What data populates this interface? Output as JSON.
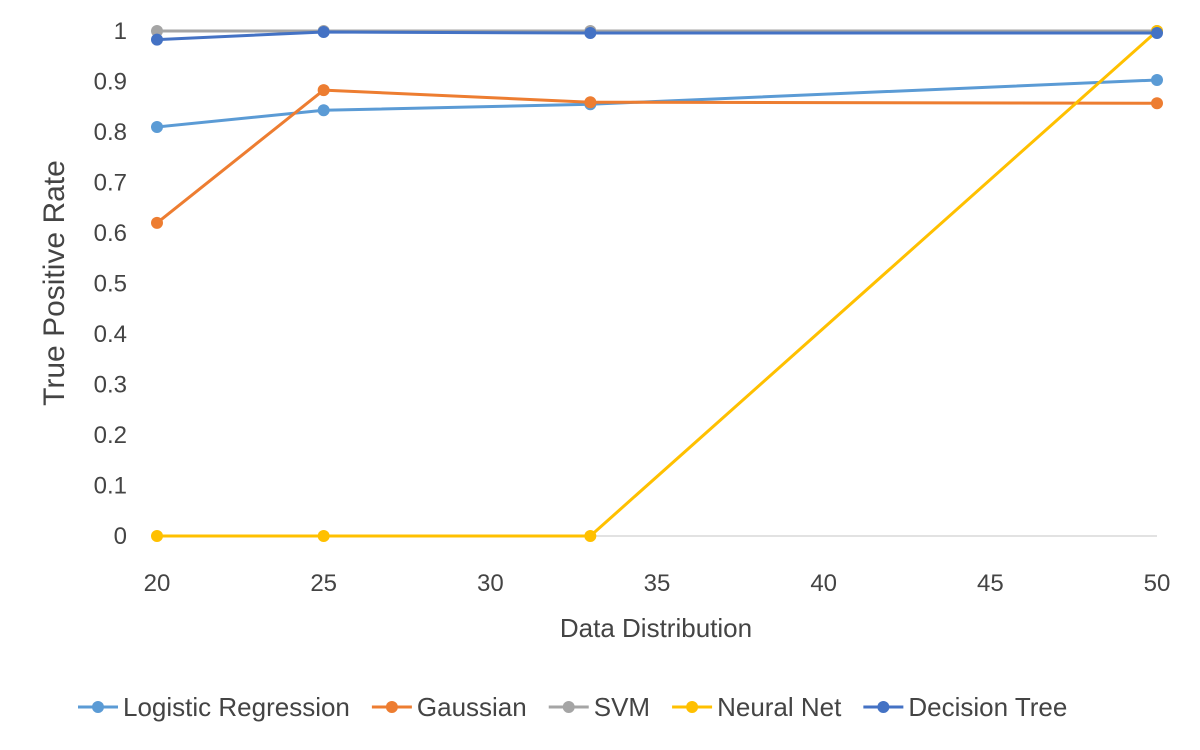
{
  "chart_data": {
    "type": "line",
    "title": "",
    "xlabel": "Data Distribution",
    "ylabel": "True Positive Rate",
    "x": [
      20,
      25,
      33,
      50
    ],
    "xlim": [
      20,
      50
    ],
    "ylim": [
      0,
      1
    ],
    "xticks": [
      "20",
      "25",
      "30",
      "35",
      "40",
      "45",
      "50"
    ],
    "yticks": [
      "0",
      "0.1",
      "0.2",
      "0.3",
      "0.4",
      "0.5",
      "0.6",
      "0.7",
      "0.8",
      "0.9",
      "1"
    ],
    "legend_position": "bottom",
    "grid": false,
    "series": [
      {
        "name": "Logistic Regression",
        "color": "#5B9BD5",
        "values": [
          0.81,
          0.843,
          0.855,
          0.903
        ]
      },
      {
        "name": "Gaussian",
        "color": "#ED7D31",
        "values": [
          0.62,
          0.883,
          0.859,
          0.857
        ]
      },
      {
        "name": "SVM",
        "color": "#A5A5A5",
        "values": [
          1.0,
          1.0,
          1.0,
          1.0
        ]
      },
      {
        "name": "Neural Net",
        "color": "#FFC000",
        "values": [
          0,
          0,
          0,
          1.0
        ]
      },
      {
        "name": "Decision Tree",
        "color": "#4472C4",
        "values": [
          0.983,
          0.998,
          0.996,
          0.996
        ]
      }
    ]
  }
}
